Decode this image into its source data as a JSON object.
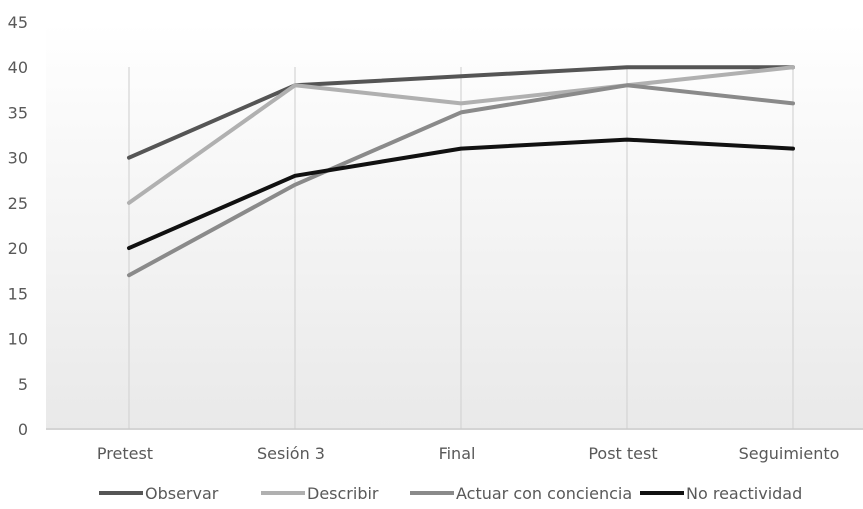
{
  "chart_data": {
    "type": "line",
    "title": "",
    "xlabel": "",
    "ylabel": "",
    "categories": [
      "Pretest",
      "Sesión 3",
      "Final",
      "Post test",
      "Seguimiento"
    ],
    "ylim": [
      0,
      45
    ],
    "yticks": [
      0,
      5,
      10,
      15,
      20,
      25,
      30,
      35,
      40,
      45
    ],
    "grid": "vertical",
    "legend": "bottom",
    "series": [
      {
        "name": "Observar",
        "color": "#555555",
        "values": [
          30,
          38,
          39,
          40,
          40
        ]
      },
      {
        "name": "Describir",
        "color": "#b0b0b0",
        "values": [
          25,
          38,
          36,
          38,
          40
        ]
      },
      {
        "name": "Actuar con conciencia",
        "color": "#8a8a8a",
        "values": [
          17,
          27,
          35,
          38,
          36
        ]
      },
      {
        "name": "No reactividad",
        "color": "#111111",
        "values": [
          20,
          28,
          31,
          32,
          31
        ]
      }
    ]
  }
}
